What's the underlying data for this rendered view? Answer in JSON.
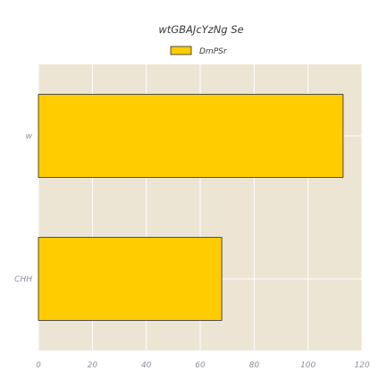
{
  "chart_data": {
    "type": "bar",
    "orientation": "horizontal",
    "title": "wtGBAJcYzNg Se",
    "categories": [
      "w",
      "CHH"
    ],
    "series": [
      {
        "name": "DmPSr",
        "values": [
          113,
          68
        ]
      }
    ],
    "xlim": [
      0,
      120
    ],
    "xticks": [
      0,
      20,
      40,
      60,
      80,
      100,
      120
    ],
    "xlabel": "",
    "ylabel": "",
    "grid": true,
    "legend_position": "top-center",
    "colors": {
      "bar": "#ffcc00",
      "bar_edge": "#2a2a2a",
      "plot_background": "#ede5d4",
      "grid": "#ffffff"
    }
  }
}
